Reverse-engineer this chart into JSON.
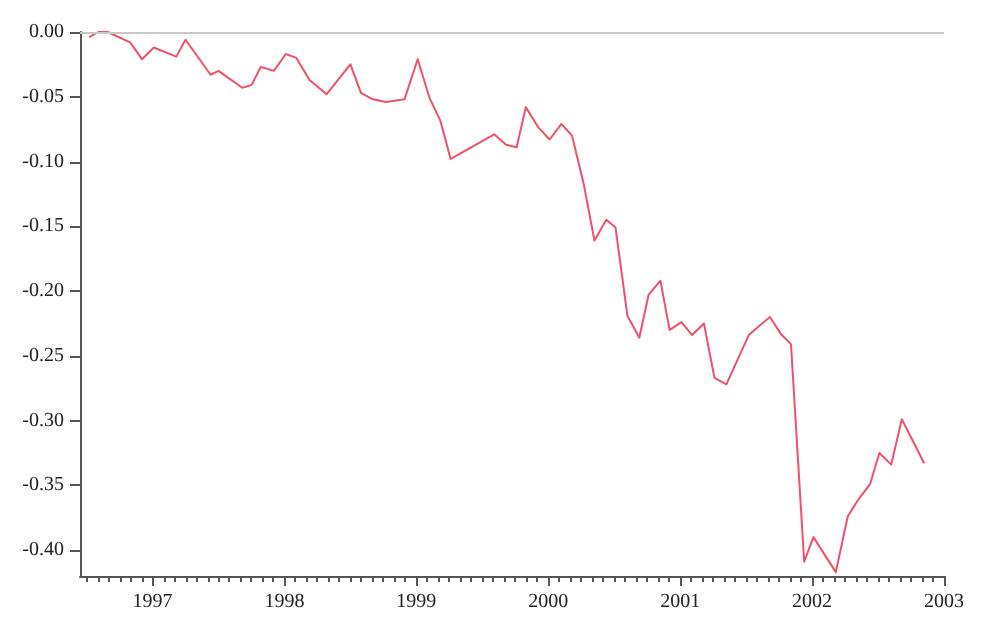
{
  "chart_data": {
    "type": "line",
    "x": [
      1996.52,
      1996.59,
      1996.66,
      1996.83,
      1996.92,
      1997.01,
      1997.18,
      1997.25,
      1997.44,
      1997.5,
      1997.68,
      1997.75,
      1997.82,
      1997.92,
      1998.01,
      1998.09,
      1998.19,
      1998.32,
      1998.5,
      1998.58,
      1998.67,
      1998.77,
      1998.91,
      1999.01,
      1999.1,
      1999.18,
      1999.26,
      1999.59,
      1999.68,
      1999.76,
      1999.83,
      1999.92,
      2000.01,
      2000.1,
      2000.18,
      2000.27,
      2000.35,
      2000.44,
      2000.51,
      2000.6,
      2000.69,
      2000.76,
      2000.85,
      2000.92,
      2001.01,
      2001.09,
      2001.18,
      2001.26,
      2001.35,
      2001.52,
      2001.68,
      2001.77,
      2001.84,
      2001.94,
      2002.01,
      2002.18,
      2002.27,
      2002.35,
      2002.44,
      2002.51,
      2002.6,
      2002.68,
      2002.85
    ],
    "series": [
      {
        "color": "#f0506a",
        "values": [
          -0.004,
          0.0,
          0.0,
          -0.008,
          -0.021,
          -0.012,
          -0.019,
          -0.006,
          -0.033,
          -0.03,
          -0.043,
          -0.041,
          -0.027,
          -0.03,
          -0.017,
          -0.02,
          -0.037,
          -0.048,
          -0.025,
          -0.047,
          -0.052,
          -0.054,
          -0.052,
          -0.021,
          -0.051,
          -0.068,
          -0.098,
          -0.079,
          -0.087,
          -0.089,
          -0.058,
          -0.073,
          -0.083,
          -0.071,
          -0.08,
          -0.118,
          -0.161,
          -0.145,
          -0.151,
          -0.219,
          -0.236,
          -0.203,
          -0.192,
          -0.23,
          -0.224,
          -0.234,
          -0.225,
          -0.267,
          -0.272,
          -0.234,
          -0.22,
          -0.234,
          -0.241,
          -0.409,
          -0.39,
          -0.417,
          -0.374,
          -0.361,
          -0.349,
          -0.325,
          -0.334,
          -0.299,
          -0.333
        ]
      }
    ],
    "xlim": [
      1996.45,
      2003.0
    ],
    "xticks": [
      1997,
      1998,
      1999,
      2000,
      2001,
      2002,
      2003
    ],
    "ylim": [
      -0.42,
      0.0
    ],
    "yticks": [
      {
        "value": 0,
        "label": "0.00"
      },
      {
        "value": -0.05,
        "label": "-0.05"
      },
      {
        "value": -0.1,
        "label": "-0.10"
      },
      {
        "value": -0.15,
        "label": "-0.15"
      },
      {
        "value": -0.2,
        "label": "-0.20"
      },
      {
        "value": -0.25,
        "label": "-0.25"
      },
      {
        "value": -0.3,
        "label": "-0.30"
      },
      {
        "value": -0.35,
        "label": "-0.35"
      },
      {
        "value": -0.4,
        "label": "-0.40"
      }
    ],
    "ref_lines": [
      {
        "axis": "y",
        "value": 0,
        "color": "#c8c8c8"
      }
    ],
    "grid": false,
    "marker": "none",
    "line_style": "solid"
  }
}
